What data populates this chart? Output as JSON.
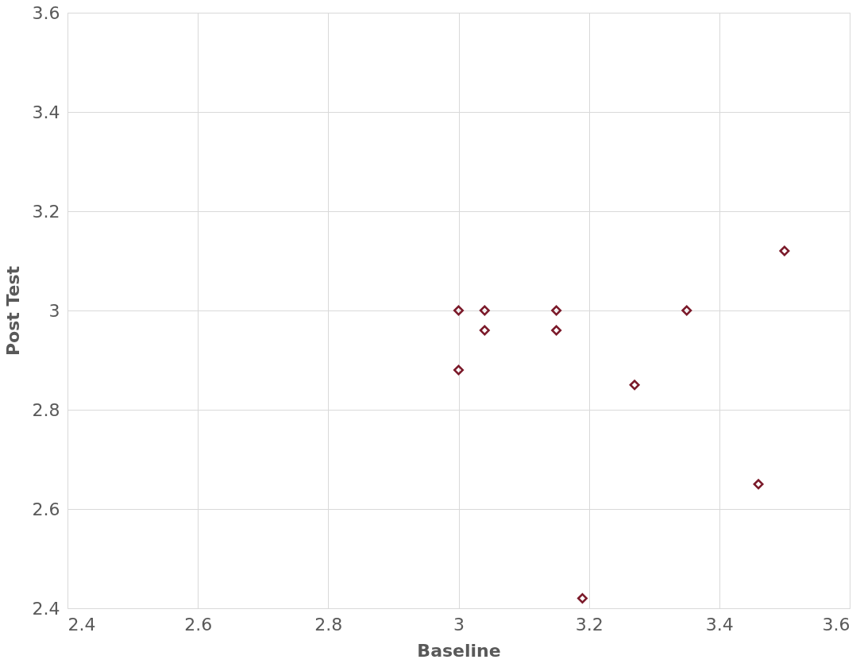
{
  "chart_data": {
    "type": "scatter",
    "xlabel": "Baseline",
    "ylabel": "Post Test",
    "x": [
      3.0,
      3.04,
      3.04,
      3.15,
      3.15,
      3.0,
      3.27,
      3.35,
      3.5,
      3.46,
      3.19
    ],
    "series": [
      {
        "color": "#7b1a2a",
        "values": [
          3.0,
          3.0,
          2.96,
          3.0,
          2.96,
          2.88,
          2.85,
          3.0,
          3.12,
          2.65,
          2.42
        ]
      }
    ],
    "xlim": [
      2.4,
      3.6
    ],
    "xticks": [
      2.4,
      2.6,
      2.8,
      3,
      3.2,
      3.4,
      3.6
    ],
    "ylim": [
      2.4,
      3.6
    ],
    "yticks": [
      2.4,
      2.6,
      2.8,
      3,
      3.2,
      3.4,
      3.6
    ],
    "grid": true,
    "marker": "diamond"
  }
}
